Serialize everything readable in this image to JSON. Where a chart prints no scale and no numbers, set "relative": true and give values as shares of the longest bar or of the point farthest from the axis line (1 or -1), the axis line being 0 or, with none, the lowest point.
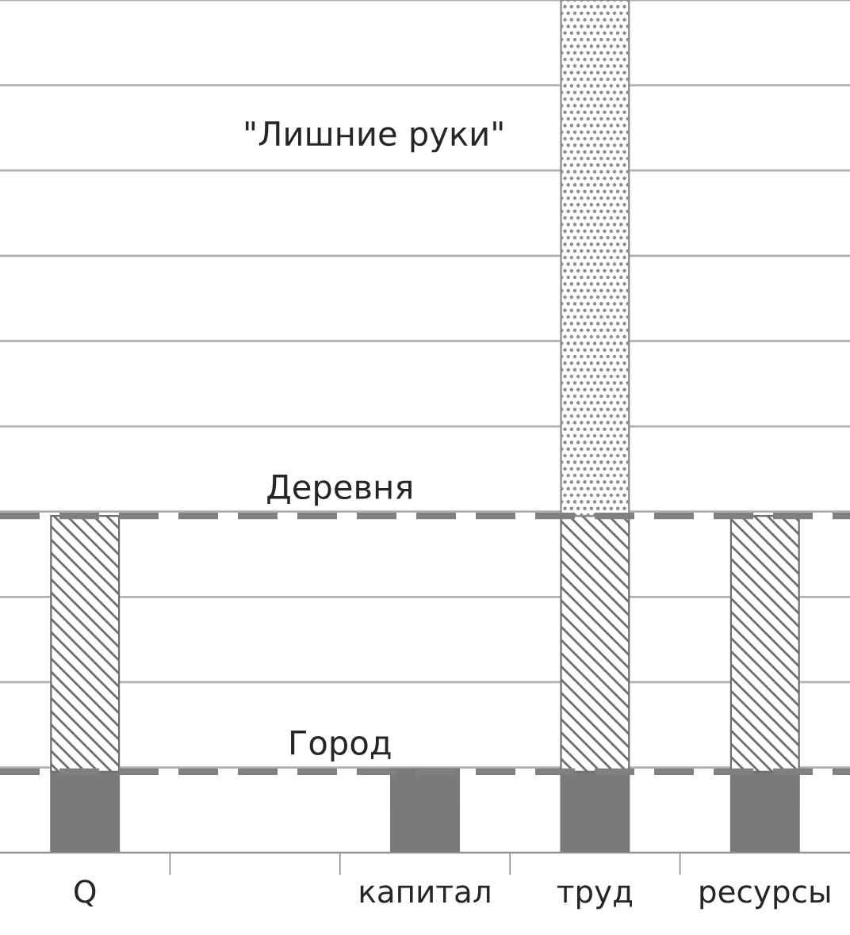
{
  "chart_data": {
    "type": "bar",
    "relative": true,
    "stacked": true,
    "categories": [
      "Q",
      null,
      "капитал",
      "труд",
      "ресурсы"
    ],
    "series": [
      {
        "color": "#7a7a7a",
        "values": [
          0.095,
          null,
          0.098,
          0.095,
          0.095
        ]
      },
      {
        "color": "#6e6e6e",
        "values": [
          0.3,
          null,
          null,
          0.3,
          0.3
        ]
      },
      {
        "color": "#8a8a8a",
        "values": [
          null,
          null,
          null,
          0.605,
          null
        ]
      }
    ],
    "ref_lines": [
      {
        "axis": "y",
        "value": 0.095,
        "label": "Город",
        "color": "#808080",
        "line_style": "dashed"
      },
      {
        "axis": "y",
        "value": 0.395,
        "label": "Деревня",
        "color": "#808080",
        "line_style": "dashed"
      }
    ],
    "annotations": [
      "\"Лишние руки\""
    ],
    "grid": "y",
    "legend": false
  }
}
